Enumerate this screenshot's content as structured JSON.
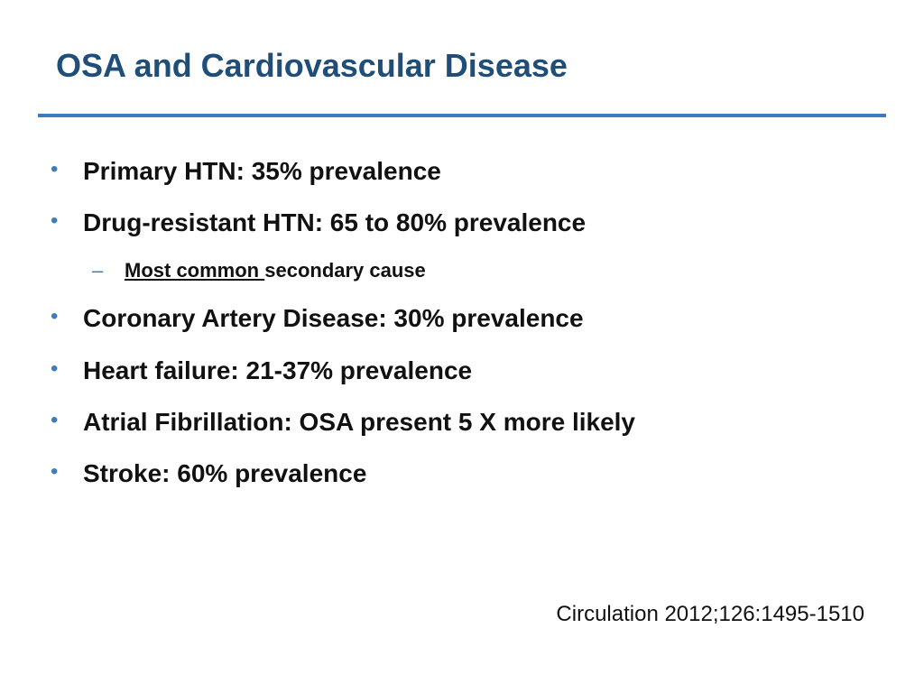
{
  "slide": {
    "title": "OSA and Cardiovascular Disease",
    "bullet_symbol": "•",
    "sub_bullet_symbol": "–",
    "bullets": [
      {
        "text": "Primary HTN: 35% prevalence"
      },
      {
        "text": "Drug-resistant HTN: 65 to 80% prevalence"
      },
      {
        "text": "Coronary Artery Disease: 30% prevalence"
      },
      {
        "text": "Heart failure: 21-37% prevalence"
      },
      {
        "text": "Atrial Fibrillation: OSA present 5 X more likely"
      },
      {
        "text": "Stroke: 60% prevalence"
      }
    ],
    "sub_bullet": {
      "underlined": "Most common ",
      "rest": "secondary cause"
    },
    "citation": "Circulation 2012;126:1495-1510"
  },
  "colors": {
    "title": "#1f4e79",
    "rule": "#3f7cbf",
    "bullet_marker": "#3f7cbf",
    "body_text": "#111111"
  }
}
